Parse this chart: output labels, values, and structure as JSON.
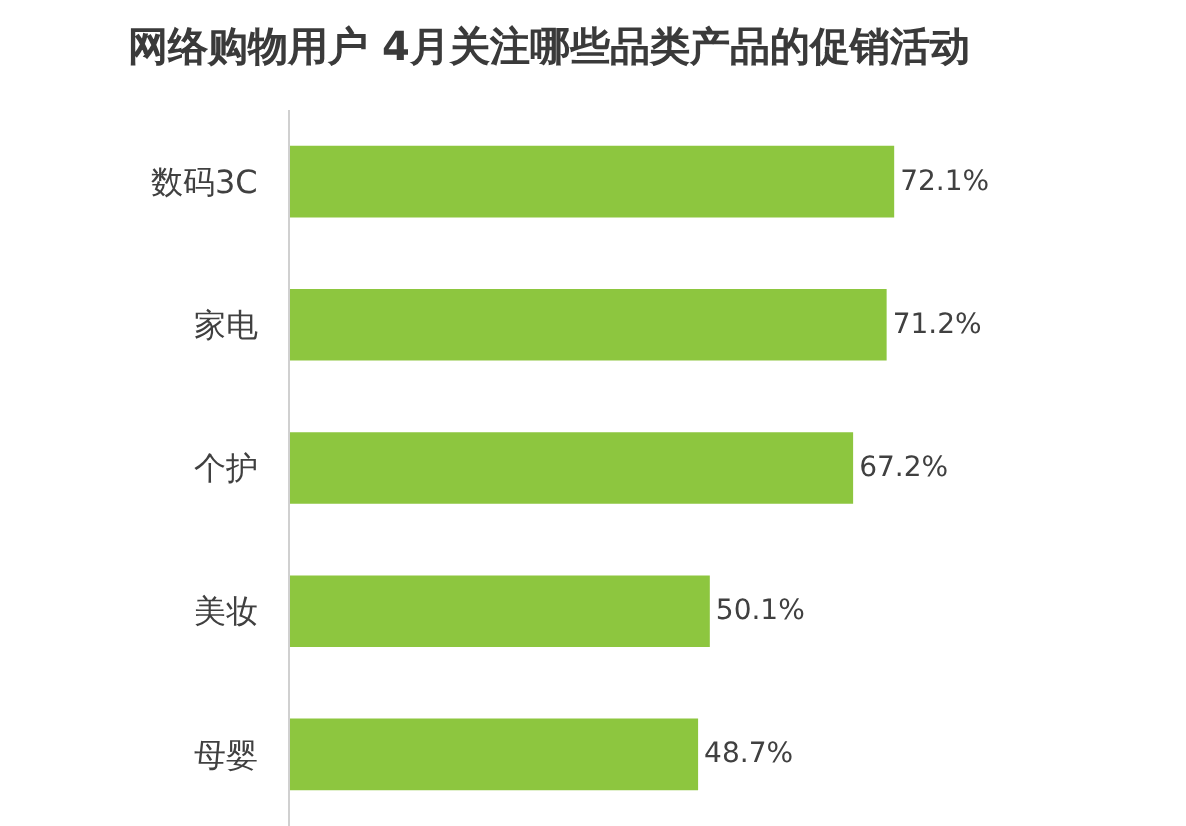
{
  "chart_data": {
    "type": "bar",
    "orientation": "horizontal",
    "title": "网络购物用户 4月关注哪些品类产品的促销活动",
    "categories": [
      "数码3C",
      "家电",
      "个护",
      "美妆",
      "母婴"
    ],
    "values": [
      72.1,
      71.2,
      67.2,
      50.1,
      48.7
    ],
    "value_labels": [
      "72.1%",
      "71.2%",
      "67.2%",
      "50.1%",
      "48.7%"
    ],
    "color": "#8dc63f",
    "tick_labels": "y"
  }
}
